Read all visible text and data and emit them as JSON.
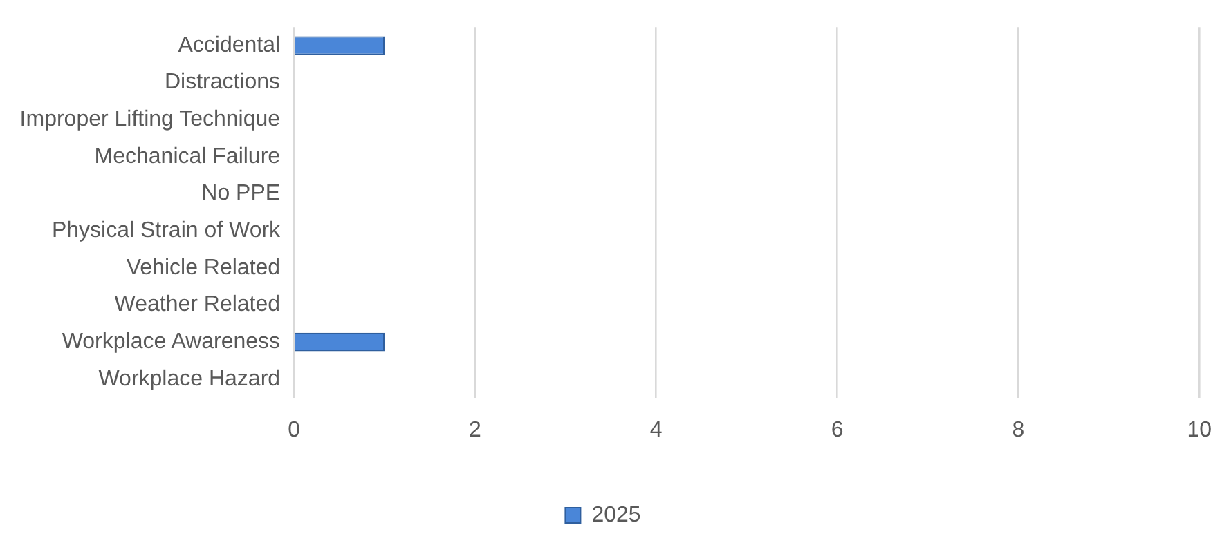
{
  "chart_data": {
    "type": "bar",
    "orientation": "horizontal",
    "categories": [
      "Accidental",
      "Distractions",
      "Improper Lifting Technique",
      "Mechanical Failure",
      "No PPE",
      "Physical Strain of Work",
      "Vehicle Related",
      "Weather Related",
      "Workplace Awareness",
      "Workplace Hazard"
    ],
    "series": [
      {
        "name": "2025",
        "color": "#4a86d8",
        "values": [
          1,
          0,
          0,
          0,
          0,
          0,
          0,
          0,
          1,
          0
        ]
      }
    ],
    "xlim": [
      0,
      10
    ],
    "xticks": [
      0,
      2,
      4,
      6,
      8,
      10
    ],
    "grid": "x",
    "legend": "bottom"
  }
}
